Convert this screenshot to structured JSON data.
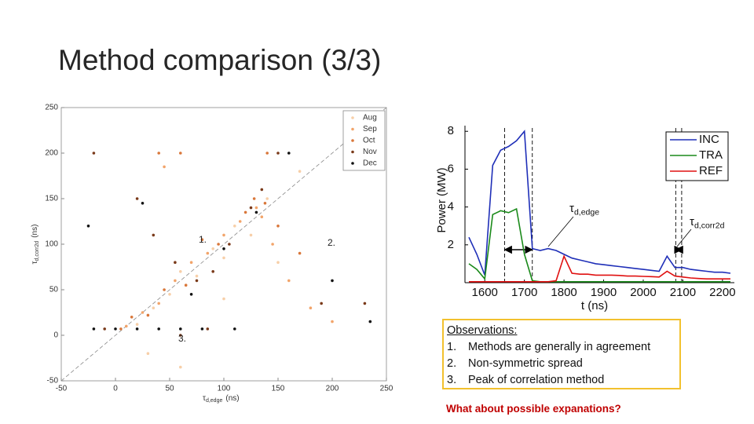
{
  "title": "Method comparison (3/3)",
  "chart_data": [
    {
      "type": "scatter",
      "xlabel": {
        "text": "τ",
        "sub": "d,edge",
        "unit": "(ns)"
      },
      "ylabel": {
        "text": "τ",
        "sub": "d,corr2d",
        "unit": "(ns)"
      },
      "xlim": [
        -50,
        250
      ],
      "xticks": [
        -50,
        0,
        50,
        100,
        150,
        200,
        250
      ],
      "ylim": [
        -50,
        250
      ],
      "yticks": [
        -50,
        0,
        50,
        100,
        150,
        200,
        250
      ],
      "reference_line": true,
      "legend": "upper right",
      "annotations": [
        "1.",
        "2.",
        "3."
      ],
      "series": [
        {
          "name": "Aug",
          "color": "#f7cfa8",
          "x": [
            20,
            35,
            50,
            60,
            75,
            90,
            100,
            110,
            125,
            140,
            30,
            60,
            100,
            150,
            170
          ],
          "values": [
            12,
            30,
            45,
            70,
            65,
            95,
            85,
            120,
            110,
            150,
            -20,
            -35,
            40,
            80,
            180
          ]
        },
        {
          "name": "Sep",
          "color": "#f2a46a",
          "x": [
            10,
            25,
            40,
            55,
            70,
            85,
            100,
            115,
            130,
            135,
            145,
            160,
            180,
            200,
            45
          ],
          "values": [
            10,
            25,
            35,
            60,
            80,
            90,
            110,
            125,
            140,
            130,
            100,
            60,
            30,
            15,
            185
          ]
        },
        {
          "name": "Oct",
          "color": "#d9773a",
          "x": [
            5,
            15,
            30,
            45,
            65,
            80,
            95,
            120,
            128,
            138,
            150,
            170,
            40,
            60,
            140
          ],
          "values": [
            7,
            20,
            22,
            50,
            55,
            105,
            100,
            135,
            150,
            145,
            120,
            90,
            200,
            200,
            200
          ]
        },
        {
          "name": "Nov",
          "color": "#7a3a1a",
          "x": [
            -20,
            20,
            35,
            55,
            75,
            90,
            105,
            125,
            135,
            150,
            190,
            230,
            -10,
            85,
            60
          ],
          "values": [
            200,
            150,
            110,
            80,
            60,
            70,
            100,
            140,
            160,
            200,
            35,
            35,
            7,
            7,
            0
          ]
        },
        {
          "name": "Dec",
          "color": "#111111",
          "x": [
            -25,
            -20,
            0,
            20,
            40,
            60,
            80,
            110,
            25,
            70,
            100,
            130,
            160,
            200,
            235
          ],
          "values": [
            120,
            7,
            7,
            7,
            7,
            7,
            7,
            7,
            145,
            45,
            95,
            135,
            200,
            60,
            15
          ]
        }
      ]
    },
    {
      "type": "line",
      "xlabel": "t (ns)",
      "ylabel": "Power (MW)",
      "xlim": [
        1550,
        2230
      ],
      "xticks": [
        1600,
        1700,
        1800,
        1900,
        2000,
        2100,
        2200
      ],
      "ylim": [
        0,
        8.3
      ],
      "yticks": [
        2,
        4,
        6,
        8
      ],
      "legend": "upper right",
      "vlines": [
        1650,
        1720,
        2082,
        2097
      ],
      "annotations": [
        {
          "text": "τ",
          "sub": "d,edge"
        },
        {
          "text": "τ",
          "sub": "d,corr2d"
        }
      ],
      "x": [
        1560,
        1580,
        1600,
        1620,
        1640,
        1660,
        1680,
        1700,
        1720,
        1740,
        1760,
        1780,
        1800,
        1820,
        1840,
        1860,
        1880,
        1900,
        1920,
        1940,
        1960,
        1980,
        2000,
        2020,
        2040,
        2060,
        2080,
        2100,
        2120,
        2140,
        2160,
        2180,
        2200,
        2220
      ],
      "series": [
        {
          "name": "INC",
          "color": "#1f2fb8",
          "values": [
            2.4,
            1.5,
            0.4,
            6.2,
            7.0,
            7.2,
            7.5,
            8.0,
            1.8,
            1.7,
            1.8,
            1.7,
            1.5,
            1.3,
            1.2,
            1.1,
            1.0,
            0.95,
            0.9,
            0.85,
            0.8,
            0.75,
            0.7,
            0.65,
            0.6,
            1.4,
            0.8,
            0.8,
            0.7,
            0.65,
            0.6,
            0.55,
            0.55,
            0.5
          ]
        },
        {
          "name": "TRA",
          "color": "#1a8a1a",
          "values": [
            1.0,
            0.7,
            0.2,
            3.6,
            3.8,
            3.7,
            3.9,
            1.5,
            0.1,
            0.05,
            0.05,
            0.05,
            0.05,
            0.05,
            0.05,
            0.05,
            0.05,
            0.05,
            0.05,
            0.05,
            0.05,
            0.05,
            0.05,
            0.05,
            0.05,
            0.05,
            0.05,
            0.05,
            0.05,
            0.05,
            0.05,
            0.05,
            0.05,
            0.05
          ]
        },
        {
          "name": "REF",
          "color": "#e01010",
          "values": [
            0.05,
            0.05,
            0.05,
            0.05,
            0.05,
            0.05,
            0.05,
            0.05,
            0.05,
            0.05,
            0.05,
            0.1,
            1.4,
            0.5,
            0.45,
            0.45,
            0.4,
            0.4,
            0.4,
            0.38,
            0.35,
            0.35,
            0.33,
            0.32,
            0.3,
            0.6,
            0.35,
            0.3,
            0.25,
            0.22,
            0.2,
            0.2,
            0.2,
            0.2
          ]
        }
      ]
    }
  ],
  "observations": {
    "heading": "Observations:",
    "items": [
      {
        "num": "1.",
        "text": "Methods are generally in agreement"
      },
      {
        "num": "2.",
        "text": "Non-symmetric spread"
      },
      {
        "num": "3.",
        "text": "Peak of correlation method"
      }
    ]
  },
  "question": "What about possible expanations?"
}
